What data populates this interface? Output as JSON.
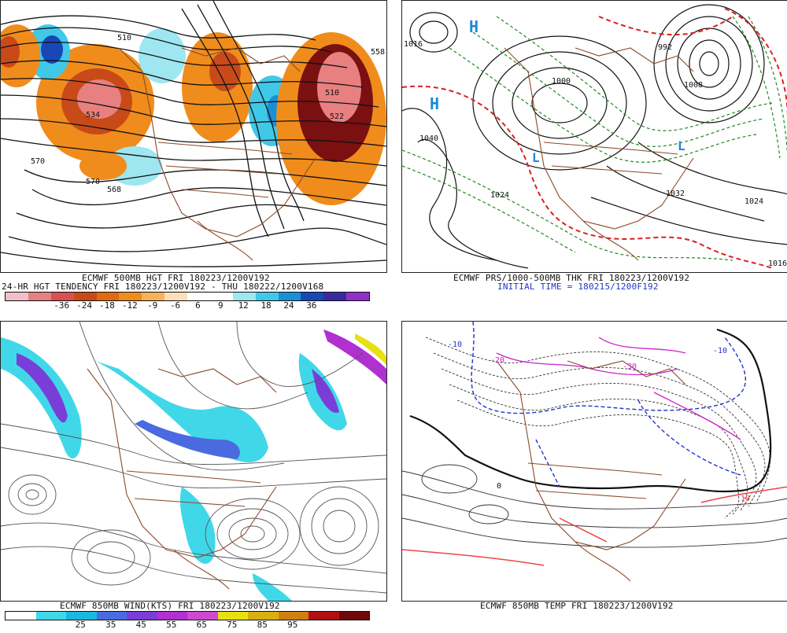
{
  "panels": {
    "top_left": {
      "caption_line1": "ECMWF 500MB HGT FRI 180223/1200V192",
      "caption_line2": "24-HR HGT TENDENCY FRI 180223/1200V192 - THU 180222/1200V168",
      "labels": [
        "534",
        "570",
        "570",
        "568",
        "510",
        "522",
        "558",
        "510"
      ],
      "legend_ticks": [
        "-36",
        "-24",
        "-18",
        "-12",
        "-9",
        "-6",
        "6",
        "9",
        "12",
        "18",
        "24",
        "36"
      ],
      "legend_colors": [
        "#f0c0c8",
        "#e88080",
        "#d85050",
        "#c84a18",
        "#e06a10",
        "#f08c1c",
        "#f7b25a",
        "#fde0b8",
        "#ffffff",
        "#ffffff",
        "#9ee6f0",
        "#40c8e8",
        "#1890d8",
        "#1848b8",
        "#3a2aa0",
        "#9030c8"
      ]
    },
    "top_right": {
      "caption_line1": "ECMWF PRS/1000-500MB THK FRI 180223/1200V192",
      "caption_line2": "INITIAL TIME = 180215/1200F192",
      "labels": [
        "H",
        "H",
        "1040",
        "1024",
        "1024",
        "1000",
        "1008",
        "1032",
        "992",
        "1016",
        "1016",
        "L",
        "L"
      ]
    },
    "bottom_left": {
      "caption": "ECMWF 850MB WIND(KTS) FRI 180223/1200V192",
      "legend_ticks": [
        "25",
        "35",
        "45",
        "55",
        "65",
        "75",
        "85",
        "95"
      ],
      "legend_colors": [
        "#ffffff",
        "#40d8e8",
        "#18b8e0",
        "#4a6ae0",
        "#7a3ed8",
        "#b030d0",
        "#d048d0",
        "#e8e010",
        "#d8b010",
        "#d08010",
        "#b01010",
        "#700808"
      ]
    },
    "bottom_right": {
      "caption": "ECMWF 850MB TEMP FRI 180223/1200V192",
      "labels": [
        "-10",
        "-20",
        "-30",
        "-10",
        "0",
        "10"
      ]
    }
  }
}
